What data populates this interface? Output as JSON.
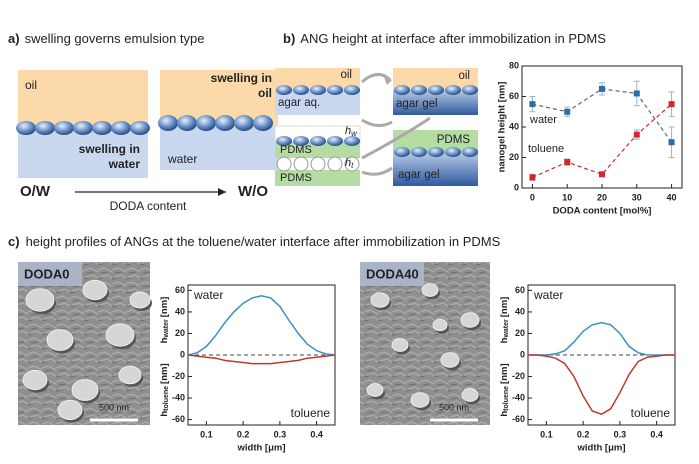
{
  "panel_a": {
    "label": "a)",
    "title": "swelling governs emulsion type",
    "oil_left": "oil",
    "swelling_water": [
      "swelling in",
      "water"
    ],
    "swelling_oil": [
      "swelling in",
      "oil"
    ],
    "water_right": "water",
    "ow": "O/W",
    "wo": "W/O",
    "arrow_label": "DODA content"
  },
  "panel_b": {
    "label": "b)",
    "title": "ANG height at interface after immobilization in PDMS",
    "diagram": {
      "oil1": "oil",
      "agar_aq": "agar aq.",
      "oil2": "oil",
      "agar_gel1": "agar gel",
      "pdms1": "PDMS",
      "hw": {
        "symbol": "h",
        "sub": "w"
      },
      "pdms2": "PDMS",
      "ht": {
        "symbol": "h",
        "sub": "t"
      },
      "pdms3": "PDMS",
      "agar_gel2": "agar gel"
    }
  },
  "panel_c": {
    "label": "c)",
    "title": "height profiles of ANGs at the toluene/water interface after immobilization in PDMS",
    "images": [
      {
        "label": "DODA0",
        "scale": "500 nm"
      },
      {
        "label": "DODA40",
        "scale": "500 nm"
      }
    ]
  },
  "chart_data": [
    {
      "type": "line",
      "xlabel": "DODA content [mol%]",
      "ylabel": "nanogel height [nm]",
      "x": [
        0,
        10,
        20,
        30,
        40
      ],
      "xlim": [
        -3,
        43
      ],
      "xticks": [
        0,
        10,
        20,
        30,
        40
      ],
      "ylim": [
        0,
        80
      ],
      "yticks": [
        0,
        20,
        40,
        60,
        80
      ],
      "line_style": "dashed",
      "series": [
        {
          "name": "water",
          "color": "#2e6da4",
          "line_color": "#666666",
          "values": [
            55,
            50,
            65,
            62,
            30
          ],
          "errors": [
            5,
            3,
            4,
            8,
            10
          ]
        },
        {
          "name": "toluene",
          "color": "#d62728",
          "line_color": "#d62728",
          "values": [
            7,
            17,
            9,
            35,
            55
          ],
          "errors": [
            2,
            2,
            1,
            3,
            8
          ]
        }
      ]
    },
    {
      "type": "line",
      "xlabel": "width [μm]",
      "ylabel_top": {
        "symbol": "h",
        "sub": "water",
        "unit": "[nm]"
      },
      "ylabel_bottom": {
        "symbol": "h",
        "sub": "toluene",
        "unit": "[nm]"
      },
      "x": [
        0.05,
        0.075,
        0.1,
        0.125,
        0.15,
        0.175,
        0.2,
        0.225,
        0.25,
        0.275,
        0.3,
        0.325,
        0.35,
        0.375,
        0.4,
        0.425,
        0.45
      ],
      "xlim": [
        0.05,
        0.45
      ],
      "xticks": [
        0.1,
        0.2,
        0.3,
        0.4
      ],
      "ylim": [
        -65,
        65
      ],
      "yticks": [
        -60,
        -40,
        -20,
        0,
        20,
        40,
        60
      ],
      "reference_line": 0,
      "series": [
        {
          "name": "water",
          "color": "#3a8fc7",
          "values": [
            0,
            2,
            8,
            18,
            30,
            40,
            48,
            53,
            55,
            53,
            45,
            32,
            20,
            10,
            4,
            1,
            0
          ]
        },
        {
          "name": "toluene",
          "color": "#c0392b",
          "values": [
            0,
            -1,
            -2,
            -3,
            -5,
            -6,
            -7,
            -8,
            -8,
            -8,
            -7,
            -6,
            -5,
            -3,
            -2,
            -1,
            0
          ]
        }
      ]
    },
    {
      "type": "line",
      "xlabel": "width [μm]",
      "ylabel_top": {
        "symbol": "h",
        "sub": "water",
        "unit": "[nm]"
      },
      "ylabel_bottom": {
        "symbol": "h",
        "sub": "toluene",
        "unit": "[nm]"
      },
      "x": [
        0.05,
        0.075,
        0.1,
        0.125,
        0.15,
        0.175,
        0.2,
        0.225,
        0.25,
        0.275,
        0.3,
        0.325,
        0.35,
        0.375,
        0.4,
        0.425,
        0.45
      ],
      "xlim": [
        0.05,
        0.45
      ],
      "xticks": [
        0.1,
        0.2,
        0.3,
        0.4
      ],
      "ylim": [
        -65,
        65
      ],
      "yticks": [
        -60,
        -40,
        -20,
        0,
        20,
        40,
        60
      ],
      "reference_line": 0,
      "series": [
        {
          "name": "water",
          "color": "#3a8fc7",
          "values": [
            0,
            0,
            0,
            1,
            4,
            12,
            22,
            28,
            30,
            28,
            20,
            8,
            2,
            0,
            0,
            0,
            0
          ]
        },
        {
          "name": "toluene",
          "color": "#c0392b",
          "values": [
            0,
            0,
            -1,
            -3,
            -8,
            -20,
            -38,
            -52,
            -55,
            -50,
            -35,
            -18,
            -6,
            -2,
            -1,
            0,
            0
          ]
        }
      ]
    }
  ]
}
